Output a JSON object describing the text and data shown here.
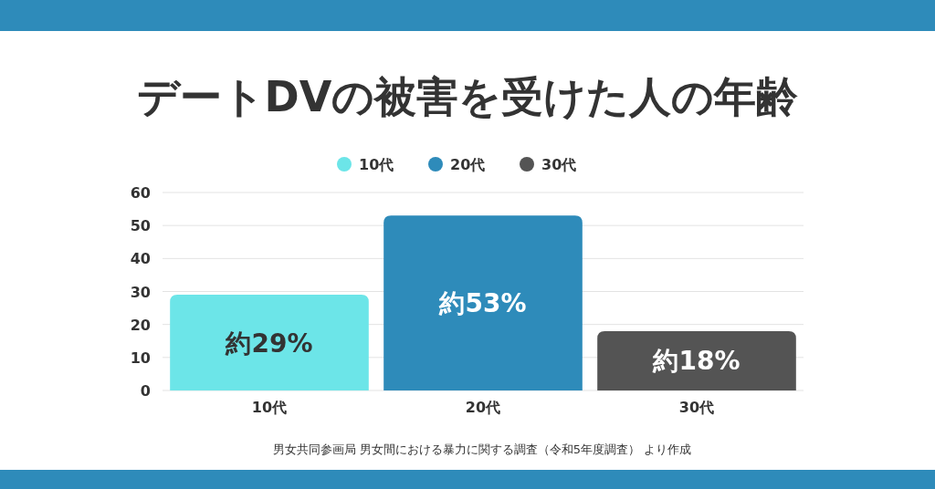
{
  "chart_data": {
    "type": "bar",
    "title": "デートDVの被害を受けた人の年齢",
    "categories": [
      "10代",
      "20代",
      "30代"
    ],
    "series": [
      {
        "name": "10代",
        "color": "#6ce5e8",
        "values": [
          29,
          null,
          null
        ],
        "value_labels": [
          "約29%",
          null,
          null
        ]
      },
      {
        "name": "20代",
        "color": "#2e8bba",
        "values": [
          null,
          53,
          null
        ],
        "value_labels": [
          null,
          "約53%",
          null
        ]
      },
      {
        "name": "30代",
        "color": "#545454",
        "values": [
          null,
          null,
          18
        ],
        "value_labels": [
          null,
          null,
          "約18%"
        ]
      }
    ],
    "ylim": [
      0,
      60
    ],
    "yticks": [
      0,
      10,
      20,
      30,
      40,
      50,
      60
    ],
    "grid": "y",
    "legend": "top",
    "annotations": [
      "男女共同参画局 男女間における暴力に関する調査（令和5年度調査） より作成"
    ]
  }
}
